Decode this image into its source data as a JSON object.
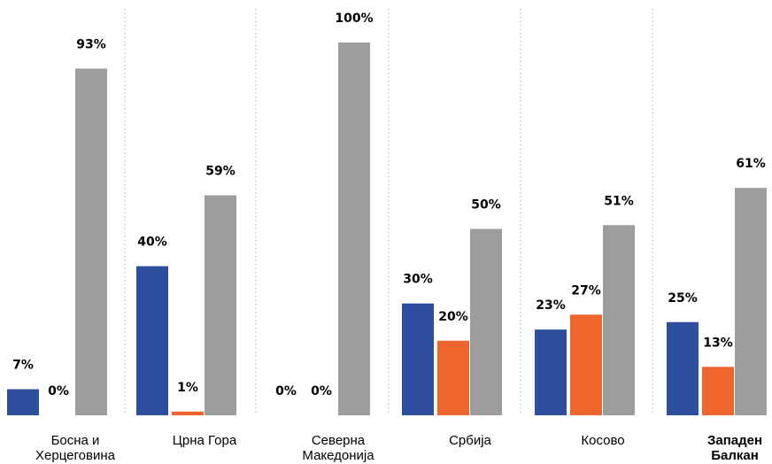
{
  "chart_data": {
    "type": "bar",
    "categories": [
      [
        "Босна и",
        "Херцеговина"
      ],
      [
        "Црна Гора"
      ],
      [
        "Северна",
        "Македонија"
      ],
      [
        "Србија"
      ],
      [
        "Косово"
      ],
      [
        "Западен",
        "Балкан"
      ]
    ],
    "series": [
      {
        "values": [
          7,
          40,
          0,
          30,
          23,
          25
        ],
        "labels": [
          "7%",
          "40%",
          "0%",
          "30%",
          "23%",
          "25%"
        ]
      },
      {
        "values": [
          0,
          1,
          0,
          20,
          27,
          13
        ],
        "labels": [
          "0%",
          "1%",
          "0%",
          "20%",
          "27%",
          "13%"
        ]
      },
      {
        "values": [
          93,
          59,
          100,
          50,
          51,
          61
        ],
        "labels": [
          "93%",
          "59%",
          "100%",
          "50%",
          "51%",
          "61%"
        ]
      }
    ],
    "colors": [
      "#2e4f9e",
      "#ee652d",
      "#9d9d9c"
    ],
    "separator_color": "#b0b0b0",
    "ylim": [
      0,
      100
    ],
    "grid": false,
    "legend": "none",
    "bold_category_index": 5
  }
}
